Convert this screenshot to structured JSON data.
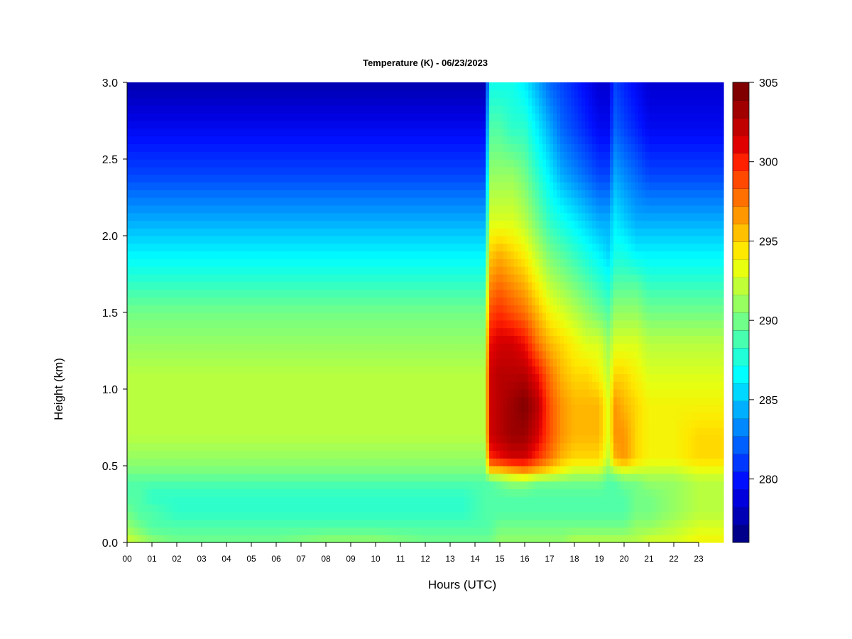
{
  "chart_data": {
    "type": "heatmap",
    "title": "Temperature (K) - 06/23/2023",
    "xlabel": "Hours (UTC)",
    "ylabel": "Height (km)",
    "x_ticks": [
      "00",
      "01",
      "02",
      "03",
      "04",
      "05",
      "06",
      "07",
      "08",
      "09",
      "10",
      "11",
      "12",
      "13",
      "14",
      "15",
      "16",
      "17",
      "18",
      "19",
      "20",
      "21",
      "22",
      "23"
    ],
    "xlim": [
      0,
      24
    ],
    "y_ticks": [
      "0.0",
      "0.5",
      "1.0",
      "1.5",
      "2.0",
      "2.5",
      "3.0"
    ],
    "ylim": [
      0,
      3
    ],
    "colorbar": {
      "ticks": [
        "280",
        "285",
        "290",
        "295",
        "300",
        "305"
      ],
      "range": [
        276,
        305
      ],
      "levels": 26,
      "colors": [
        "#00008b",
        "#0000b4",
        "#0000dc",
        "#0010ff",
        "#0038ff",
        "#0060ff",
        "#0088ff",
        "#00b0ff",
        "#00d8ff",
        "#00ffff",
        "#20ffd8",
        "#48ffb0",
        "#70ff88",
        "#98ff60",
        "#c0ff38",
        "#e8ff10",
        "#ffe800",
        "#ffc000",
        "#ff9800",
        "#ff7000",
        "#ff4800",
        "#ff2000",
        "#e00000",
        "#c00000",
        "#a00000",
        "#800000"
      ]
    },
    "x_hours": [
      0,
      0.5,
      1,
      2,
      4,
      6,
      8,
      10,
      12,
      13.5,
      14.45,
      14.55,
      15,
      15.5,
      16,
      16.5,
      17,
      17.5,
      18,
      18.5,
      19,
      19.4,
      19.6,
      20,
      20.5,
      21,
      22,
      23,
      24
    ],
    "y_km": [
      0,
      0.1,
      0.2,
      0.3,
      0.4,
      0.45,
      0.55,
      0.7,
      0.9,
      1.1,
      1.3,
      1.5,
      1.7,
      1.9,
      2.1,
      2.4,
      2.7,
      3.0
    ],
    "temperature_K": [
      [
        293,
        292,
        291,
        290,
        290,
        290,
        291,
        291,
        290,
        290,
        290,
        290,
        291,
        291,
        291,
        291,
        291,
        291,
        292,
        292,
        292,
        292,
        292,
        292,
        292,
        293,
        293,
        294,
        294
      ],
      [
        291,
        290,
        289,
        289,
        289,
        289,
        289,
        289,
        289,
        289,
        289,
        289,
        290,
        290,
        290,
        290,
        290,
        290,
        290,
        290,
        290,
        290,
        290,
        290,
        291,
        291,
        292,
        293,
        293
      ],
      [
        290,
        289,
        289,
        288,
        288,
        288,
        288,
        288,
        288,
        288,
        289,
        289,
        289,
        289,
        289,
        289,
        289,
        289,
        289,
        289,
        289,
        289,
        289,
        289,
        290,
        290,
        291,
        292,
        292
      ],
      [
        289,
        289,
        288,
        288,
        288,
        288,
        288,
        288,
        288,
        288,
        289,
        289,
        289,
        289,
        289,
        289,
        289,
        289,
        289,
        289,
        289,
        289,
        289,
        289,
        290,
        290,
        291,
        292,
        292
      ],
      [
        289,
        289,
        289,
        289,
        289,
        289,
        289,
        289,
        289,
        289,
        289,
        289,
        290,
        291,
        291,
        290,
        290,
        290,
        290,
        290,
        290,
        289,
        289,
        290,
        290,
        291,
        291,
        292,
        292
      ],
      [
        290,
        290,
        290,
        290,
        290,
        290,
        290,
        290,
        290,
        290,
        290,
        294,
        294,
        295,
        296,
        295,
        294,
        293,
        292,
        292,
        292,
        290,
        291,
        292,
        292,
        292,
        292,
        293,
        293
      ],
      [
        291,
        291,
        291,
        291,
        291,
        291,
        291,
        291,
        291,
        291,
        291,
        300,
        301,
        302,
        302,
        300,
        298,
        296,
        295,
        295,
        295,
        292,
        296,
        297,
        295,
        294,
        294,
        295,
        295
      ],
      [
        292,
        292,
        292,
        292,
        292,
        292,
        292,
        292,
        292,
        292,
        292,
        302,
        303,
        304,
        304,
        302,
        299,
        297,
        296,
        296,
        296,
        293,
        297,
        297,
        295,
        294,
        294,
        295,
        295
      ],
      [
        292,
        292,
        292,
        292,
        292,
        292,
        292,
        292,
        292,
        292,
        292,
        302,
        303,
        304,
        305,
        303,
        299,
        297,
        296,
        296,
        296,
        293,
        297,
        296,
        295,
        294,
        294,
        294,
        294
      ],
      [
        292,
        292,
        292,
        292,
        292,
        292,
        292,
        292,
        292,
        292,
        292,
        302,
        303,
        303,
        303,
        301,
        298,
        296,
        295,
        295,
        294,
        292,
        295,
        295,
        294,
        293,
        293,
        293,
        293
      ],
      [
        291,
        291,
        291,
        291,
        291,
        291,
        291,
        291,
        291,
        291,
        291,
        301,
        302,
        302,
        301,
        298,
        296,
        295,
        294,
        293,
        293,
        291,
        293,
        293,
        293,
        292,
        292,
        292,
        292
      ],
      [
        290,
        290,
        290,
        290,
        290,
        290,
        290,
        290,
        290,
        290,
        290,
        299,
        300,
        299,
        298,
        296,
        294,
        293,
        292,
        291,
        290,
        289,
        291,
        291,
        291,
        290,
        290,
        290,
        290
      ],
      [
        288,
        288,
        288,
        288,
        288,
        288,
        288,
        288,
        288,
        288,
        288,
        297,
        298,
        297,
        296,
        294,
        292,
        291,
        290,
        289,
        288,
        287,
        289,
        289,
        289,
        288,
        288,
        288,
        288
      ],
      [
        286,
        286,
        286,
        286,
        286,
        286,
        286,
        286,
        286,
        286,
        286,
        295,
        296,
        295,
        294,
        292,
        290,
        289,
        288,
        287,
        286,
        285,
        287,
        287,
        286,
        286,
        286,
        286,
        286
      ],
      [
        284,
        284,
        284,
        284,
        284,
        284,
        284,
        284,
        284,
        284,
        284,
        293,
        293,
        293,
        292,
        290,
        288,
        287,
        286,
        285,
        284,
        284,
        286,
        285,
        284,
        284,
        284,
        284,
        284
      ],
      [
        281,
        281,
        281,
        281,
        281,
        281,
        281,
        281,
        281,
        281,
        281,
        291,
        291,
        291,
        290,
        288,
        286,
        284,
        283,
        282,
        281,
        281,
        284,
        283,
        282,
        281,
        281,
        281,
        281
      ],
      [
        279,
        279,
        279,
        279,
        279,
        279,
        279,
        279,
        279,
        279,
        279,
        289,
        289,
        288,
        288,
        286,
        284,
        282,
        281,
        280,
        279,
        279,
        282,
        281,
        280,
        279,
        279,
        279,
        279
      ],
      [
        277,
        277,
        277,
        277,
        277,
        277,
        277,
        277,
        277,
        277,
        277,
        287,
        287,
        287,
        286,
        284,
        282,
        281,
        280,
        279,
        278,
        278,
        281,
        280,
        279,
        278,
        278,
        278,
        278
      ]
    ]
  }
}
